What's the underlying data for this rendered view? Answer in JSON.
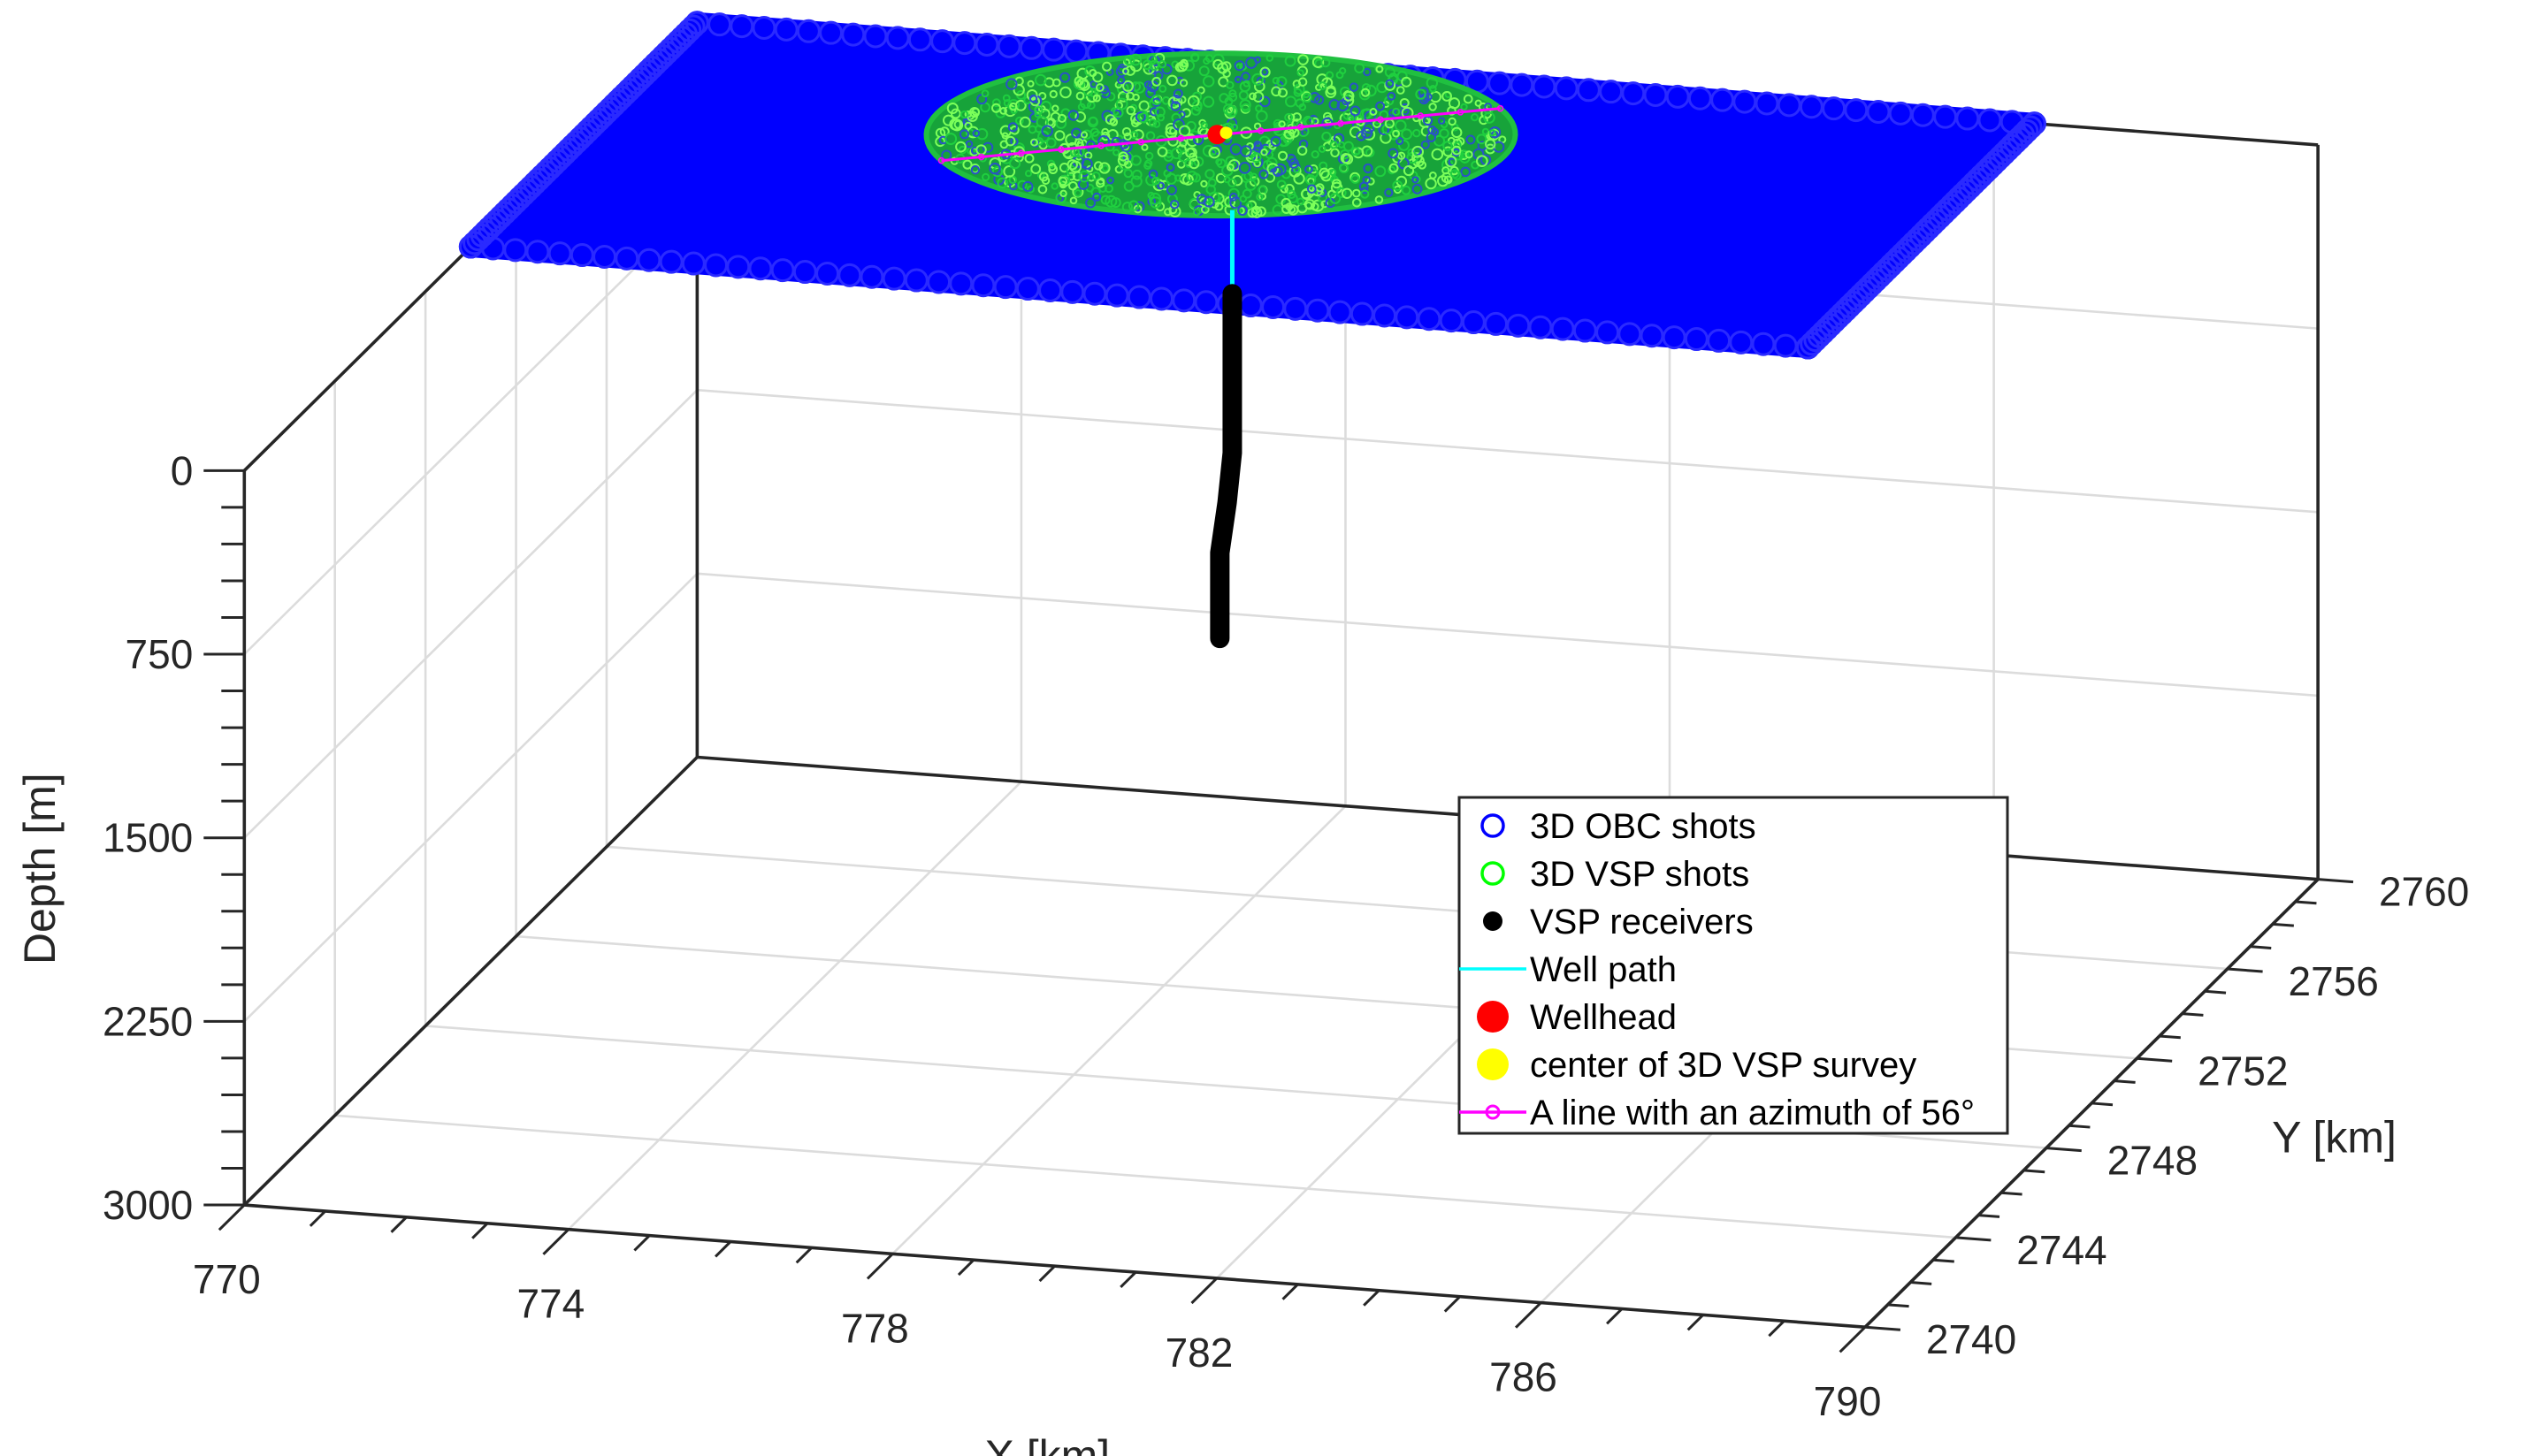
{
  "chart_data": {
    "type": "scatter",
    "dimensions": "3d",
    "xlabel": "X [km]",
    "ylabel": "Y [km]",
    "zlabel": "Depth [m]",
    "xlim": [
      770,
      790
    ],
    "ylim": [
      2740,
      2760
    ],
    "zlim": [
      0,
      3000
    ],
    "z_reversed": true,
    "x_ticks": [
      "770",
      "774",
      "778",
      "782",
      "786",
      "790"
    ],
    "y_ticks": [
      "2740",
      "2744",
      "2748",
      "2752",
      "2756",
      "2760"
    ],
    "z_ticks": [
      "0",
      "750",
      "1500",
      "2250",
      "3000"
    ],
    "grid": true,
    "legend_position": "inside-right",
    "colors": {
      "obc": "#0000ff",
      "vsp_shots": "#00ff00",
      "receivers": "#000000",
      "well": "#00ffff",
      "wellhead": "#ff0000",
      "center": "#ffff00",
      "azimuth_line": "#ff00ff",
      "grid": "#dcdcdc",
      "axis": "#262626"
    },
    "series": [
      {
        "name": "3D OBC shots",
        "marker": "open-circle",
        "color": "#0000ff",
        "x_range": [
          770,
          786.5
        ],
        "y_range": [
          2750,
          2760
        ],
        "depth": 0
      },
      {
        "name": "3D VSP shots",
        "marker": "open-circle",
        "color": "#00ff00",
        "center": [
          777.3,
          2757.0
        ],
        "radius_km": 3.5,
        "depth": 0
      },
      {
        "name": "VSP receivers",
        "marker": "filled-circle",
        "color": "#000000",
        "top_depth": 450,
        "bottom_depth": 1850,
        "path": [
          [
            778.0,
            2755.0,
            450
          ],
          [
            778.0,
            2755.0,
            1100
          ],
          [
            777.95,
            2754.95,
            1300
          ],
          [
            777.88,
            2754.88,
            1500
          ],
          [
            777.88,
            2754.88,
            1850
          ]
        ]
      },
      {
        "name": "Well path",
        "marker": "line",
        "color": "#00ffff",
        "path": [
          [
            778.0,
            2755.0,
            0
          ],
          [
            778.0,
            2755.0,
            450
          ]
        ]
      },
      {
        "name": "Wellhead",
        "marker": "filled-circle",
        "color": "#ff0000",
        "point": [
          777.3,
          2757.0,
          0
        ]
      },
      {
        "name": "center of 3D VSP survey",
        "marker": "filled-circle",
        "color": "#ffff00",
        "point": [
          777.3,
          2757.0,
          0
        ]
      },
      {
        "name": "A line with an azimuth of 56°",
        "marker": "line-circle",
        "color": "#ff00ff",
        "azimuth_deg": 56,
        "through": [
          777.3,
          2757.0
        ],
        "half_length_km": 3.5
      }
    ]
  }
}
